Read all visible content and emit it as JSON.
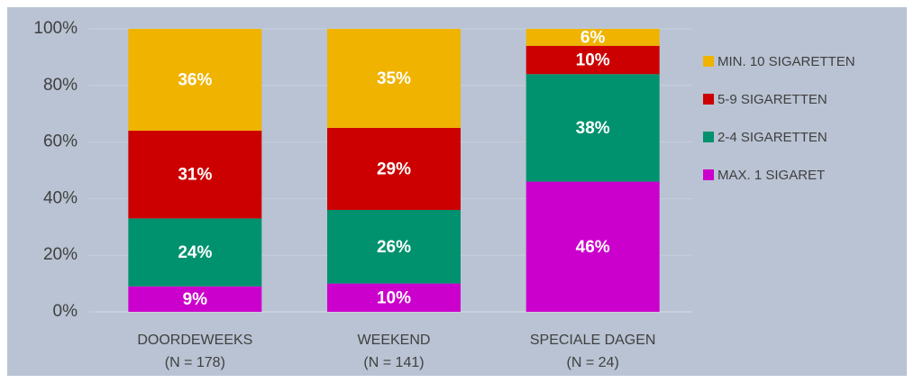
{
  "chart_data": {
    "type": "stacked_bar",
    "categories": [
      "DOORDEWEEKS",
      "WEEKEND",
      "SPECIALE DAGEN"
    ],
    "category_notes": [
      "(N = 178)",
      "(N = 141)",
      "(N = 24)"
    ],
    "series": [
      {
        "name": "MAX. 1 SIGARET",
        "color": "#cc00cc",
        "values": [
          9,
          10,
          46
        ],
        "value_labels": [
          "9%",
          "10%",
          "46%"
        ]
      },
      {
        "name": "2-4 SIGARETTEN",
        "color": "#00926e",
        "values": [
          24,
          26,
          38
        ],
        "value_labels": [
          "24%",
          "26%",
          "38%"
        ]
      },
      {
        "name": "5-9 SIGARETTEN",
        "color": "#cc0000",
        "values": [
          31,
          29,
          10
        ],
        "value_labels": [
          "31%",
          "29%",
          "10%"
        ]
      },
      {
        "name": "MIN. 10 SIGARETTEN",
        "color": "#efb300",
        "values": [
          36,
          35,
          6
        ],
        "value_labels": [
          "36%",
          "35%",
          "6%"
        ]
      }
    ],
    "ylim": [
      0,
      100
    ],
    "yticks": [
      {
        "value": 0,
        "label": "0%"
      },
      {
        "value": 20,
        "label": "20%"
      },
      {
        "value": 40,
        "label": "40%"
      },
      {
        "value": 60,
        "label": "60%"
      },
      {
        "value": 80,
        "label": "80%"
      },
      {
        "value": 100,
        "label": "100%"
      }
    ],
    "grid": true,
    "legend": "right"
  }
}
